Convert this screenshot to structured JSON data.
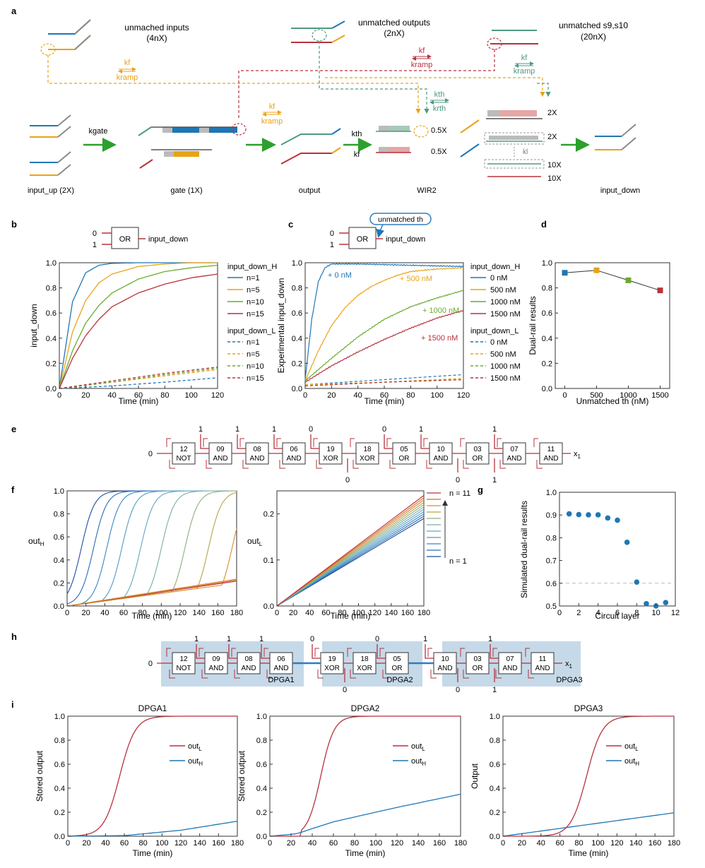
{
  "colors": {
    "blue": "#1f77b4",
    "orange": "#e8a317",
    "green": "#6aab2e",
    "red": "#b8323c",
    "teal": "#4e9a83",
    "gray": "#8a8a8a",
    "arrow_green": "#2ca02c",
    "box_fill": "#c5d9e8",
    "thick_blue": "#2e7ebf"
  },
  "panel_a": {
    "label": "a",
    "unmatched_inputs": "unmached inputs",
    "unmatched_inputs_conc": "(4nX)",
    "unmatched_outputs": "unmatched outputs",
    "unmatched_outputs_conc": "(2nX)",
    "unmatched_s9s10": "unmatched s9,s10",
    "unmatched_s9s10_conc": "(20nX)",
    "kf": "kf",
    "kramp": "kramp",
    "kgate": "kgate",
    "kth": "kth",
    "krth": "krth",
    "kl": "kl",
    "c_2x": "2X",
    "c_05x": "0.5X",
    "c_10x": "10X",
    "input_up": "input_up (2X)",
    "gate": "gate (1X)",
    "output": "output",
    "wir2": "WIR2",
    "input_down": "input_down"
  },
  "panel_b": {
    "label": "b",
    "gate_label": "OR",
    "in0": "0",
    "in1": "1",
    "out_label": "input_down",
    "ylabel": "input_down",
    "xlabel": "Time (min)",
    "legend_h_title": "input_down_H",
    "legend_l_title": "input_down_L",
    "legend_items": [
      "n=1",
      "n=5",
      "n=10",
      "n=15"
    ],
    "xticks": [
      "0",
      "20",
      "40",
      "60",
      "80",
      "100",
      "120"
    ],
    "yticks": [
      "0.0",
      "0.2",
      "0.4",
      "0.6",
      "0.8",
      "1.0"
    ]
  },
  "panel_c": {
    "label": "c",
    "gate_label": "OR",
    "in0": "0",
    "in1": "1",
    "out_label": "input_down",
    "callout": "unmatched th",
    "ylabel": "Experimental input_down",
    "xlabel": "Time (min)",
    "legend_h_title": "input_down_H",
    "legend_l_title": "input_down_L",
    "legend_items": [
      "0 nM",
      "500 nM",
      "1000 nM",
      "1500 nM"
    ],
    "annotations": [
      "+ 0 nM",
      "+ 500 nM",
      "+ 1000 nM",
      "+ 1500 nM"
    ],
    "xticks": [
      "0",
      "20",
      "40",
      "60",
      "80",
      "100",
      "120"
    ],
    "yticks": [
      "0.0",
      "0.2",
      "0.4",
      "0.6",
      "0.8",
      "1.0"
    ]
  },
  "panel_d": {
    "label": "d",
    "ylabel": "Dual-rail results",
    "xlabel": "Unmatched th (nM)",
    "xticks": [
      "0",
      "500",
      "1000",
      "1500"
    ],
    "yticks": [
      "0.0",
      "0.2",
      "0.4",
      "0.6",
      "0.8",
      "1.0"
    ]
  },
  "panel_e": {
    "label": "e",
    "in_left": "0",
    "gates": [
      {
        "num": "12",
        "type": "NOT"
      },
      {
        "num": "09",
        "type": "AND"
      },
      {
        "num": "08",
        "type": "AND"
      },
      {
        "num": "06",
        "type": "AND"
      },
      {
        "num": "19",
        "type": "XOR"
      },
      {
        "num": "18",
        "type": "XOR"
      },
      {
        "num": "05",
        "type": "OR"
      },
      {
        "num": "10",
        "type": "AND"
      },
      {
        "num": "03",
        "type": "OR"
      },
      {
        "num": "07",
        "type": "AND"
      },
      {
        "num": "11",
        "type": "AND"
      }
    ],
    "top_inputs": [
      "1",
      "1",
      "1",
      "0",
      "0",
      "1",
      "1"
    ],
    "bottom_inputs": [
      "0",
      "0",
      "1"
    ],
    "out_label": "x",
    "out_sub": "1"
  },
  "panel_f": {
    "label": "f",
    "left_ylabel": "out",
    "left_ysub": "H",
    "right_ylabel": "out",
    "right_ysub": "L",
    "xlabel": "Time (min)",
    "xticks": [
      "0",
      "20",
      "40",
      "60",
      "80",
      "100",
      "120",
      "140",
      "160",
      "180"
    ],
    "left_yticks": [
      "0.0",
      "0.2",
      "0.4",
      "0.6",
      "0.8",
      "1.0"
    ],
    "right_yticks": [
      "0.0",
      "0.1",
      "0.2"
    ],
    "legend_top": "n = 11",
    "legend_bottom": "n = 1"
  },
  "panel_g": {
    "label": "g",
    "ylabel": "Simulated dual-rail results",
    "xlabel": "Circuit layer",
    "xticks": [
      "0",
      "2",
      "4",
      "6",
      "8",
      "10",
      "12"
    ],
    "yticks": [
      "0.5",
      "0.6",
      "0.7",
      "0.8",
      "0.9",
      "1.0"
    ]
  },
  "panel_h": {
    "label": "h",
    "in_left": "0",
    "group_labels": [
      "DPGA1",
      "DPGA2",
      "DPGA3"
    ],
    "top_inputs": [
      "1",
      "1",
      "1",
      "0",
      "0",
      "1",
      "1"
    ],
    "bottom_inputs": [
      "0",
      "0",
      "1"
    ],
    "out_label": "x",
    "out_sub": "1"
  },
  "panel_i": {
    "label": "i",
    "titles": [
      "DPGA1",
      "DPGA2",
      "DPGA3"
    ],
    "ylabels": [
      "Stored output",
      "Stored output",
      "Output"
    ],
    "xlabel": "Time (min)",
    "legend_l": "out",
    "legend_l_sub": "L",
    "legend_h": "out",
    "legend_h_sub": "H",
    "xticks": [
      "0",
      "20",
      "40",
      "60",
      "80",
      "100",
      "120",
      "140",
      "160",
      "180"
    ],
    "yticks": [
      "0.0",
      "0.2",
      "0.4",
      "0.6",
      "0.8",
      "1.0"
    ]
  },
  "chart_data": [
    {
      "panel": "b",
      "type": "line",
      "xlabel": "Time (min)",
      "ylabel": "input_down",
      "xlim": [
        0,
        120
      ],
      "ylim": [
        0,
        1
      ],
      "series": [
        {
          "name": "n=1",
          "rail": "H",
          "x": [
            0,
            10,
            20,
            30,
            40,
            60,
            80,
            100,
            120
          ],
          "values": [
            0,
            0.69,
            0.92,
            0.98,
            0.995,
            1,
            1,
            1,
            1
          ]
        },
        {
          "name": "n=5",
          "rail": "H",
          "x": [
            0,
            10,
            20,
            30,
            40,
            60,
            80,
            100,
            120
          ],
          "values": [
            0,
            0.45,
            0.7,
            0.84,
            0.91,
            0.97,
            0.99,
            1,
            1
          ]
        },
        {
          "name": "n=10",
          "rail": "H",
          "x": [
            0,
            10,
            20,
            30,
            40,
            60,
            80,
            100,
            120
          ],
          "values": [
            0,
            0.3,
            0.52,
            0.66,
            0.76,
            0.87,
            0.93,
            0.96,
            0.98
          ]
        },
        {
          "name": "n=15",
          "rail": "H",
          "x": [
            0,
            10,
            20,
            30,
            40,
            60,
            80,
            100,
            120
          ],
          "values": [
            0,
            0.24,
            0.42,
            0.55,
            0.65,
            0.76,
            0.83,
            0.88,
            0.91
          ]
        },
        {
          "name": "n=1",
          "rail": "L",
          "x": [
            0,
            40,
            80,
            120
          ],
          "values": [
            0,
            0.02,
            0.05,
            0.085
          ]
        },
        {
          "name": "n=5",
          "rail": "L",
          "x": [
            0,
            40,
            80,
            120
          ],
          "values": [
            0,
            0.05,
            0.1,
            0.15
          ]
        },
        {
          "name": "n=10",
          "rail": "L",
          "x": [
            0,
            40,
            80,
            120
          ],
          "values": [
            0,
            0.05,
            0.11,
            0.16
          ]
        },
        {
          "name": "n=15",
          "rail": "L",
          "x": [
            0,
            40,
            80,
            120
          ],
          "values": [
            0,
            0.06,
            0.12,
            0.17
          ]
        }
      ]
    },
    {
      "panel": "c",
      "type": "line",
      "xlabel": "Time (min)",
      "ylabel": "Experimental input_down",
      "xlim": [
        0,
        120
      ],
      "ylim": [
        0,
        1
      ],
      "series": [
        {
          "name": "0 nM",
          "rail": "H",
          "x": [
            0,
            5,
            10,
            15,
            20,
            40,
            60,
            80,
            100,
            120
          ],
          "values": [
            0.07,
            0.55,
            0.85,
            0.96,
            0.99,
            0.99,
            0.985,
            0.98,
            0.975,
            0.97
          ]
        },
        {
          "name": "500 nM",
          "rail": "H",
          "x": [
            0,
            10,
            20,
            30,
            40,
            50,
            60,
            70,
            80,
            100,
            120
          ],
          "values": [
            0.06,
            0.3,
            0.5,
            0.64,
            0.74,
            0.81,
            0.86,
            0.9,
            0.93,
            0.95,
            0.96
          ]
        },
        {
          "name": "1000 nM",
          "rail": "H",
          "x": [
            0,
            20,
            40,
            60,
            80,
            100,
            120
          ],
          "values": [
            0.06,
            0.24,
            0.41,
            0.55,
            0.65,
            0.72,
            0.78
          ]
        },
        {
          "name": "1500 nM",
          "rail": "H",
          "x": [
            0,
            20,
            40,
            60,
            80,
            100,
            120
          ],
          "values": [
            0.05,
            0.18,
            0.29,
            0.39,
            0.48,
            0.56,
            0.62
          ]
        },
        {
          "name": "0 nM",
          "rail": "L",
          "x": [
            0,
            60,
            120
          ],
          "values": [
            0.03,
            0.07,
            0.11
          ]
        },
        {
          "name": "500 nM",
          "rail": "L",
          "x": [
            0,
            60,
            120
          ],
          "values": [
            0.03,
            0.05,
            0.08
          ]
        },
        {
          "name": "1000 nM",
          "rail": "L",
          "x": [
            0,
            60,
            120
          ],
          "values": [
            0.02,
            0.05,
            0.07
          ]
        },
        {
          "name": "1500 nM",
          "rail": "L",
          "x": [
            0,
            60,
            120
          ],
          "values": [
            0.02,
            0.05,
            0.07
          ]
        }
      ]
    },
    {
      "panel": "d",
      "type": "scatter",
      "xlabel": "Unmatched th (nM)",
      "ylabel": "Dual-rail results",
      "xlim": [
        -150,
        1650
      ],
      "ylim": [
        0,
        1
      ],
      "x": [
        0,
        500,
        1000,
        1500
      ],
      "values": [
        0.92,
        0.94,
        0.86,
        0.78
      ]
    },
    {
      "panel": "f-left",
      "type": "line",
      "xlabel": "Time (min)",
      "ylabel": "outH",
      "xlim": [
        0,
        180
      ],
      "ylim": [
        0,
        1
      ],
      "midpoints": [
        15,
        28,
        42,
        58,
        78,
        100,
        125,
        150,
        175
      ]
    },
    {
      "panel": "f-right",
      "type": "line",
      "xlabel": "Time (min)",
      "ylabel": "outL",
      "xlim": [
        0,
        180
      ],
      "ylim": [
        0,
        0.25
      ],
      "endpoints": [
        0.19,
        0.195,
        0.2,
        0.205,
        0.21,
        0.215,
        0.22,
        0.225,
        0.23,
        0.235,
        0.24
      ]
    },
    {
      "panel": "g",
      "type": "scatter",
      "xlabel": "Circuit layer",
      "ylabel": "Simulated dual-rail results",
      "xlim": [
        0,
        12
      ],
      "ylim": [
        0.5,
        1.0
      ],
      "reference_line": 0.6,
      "x": [
        1,
        2,
        3,
        4,
        5,
        6,
        7,
        8,
        9,
        10,
        11
      ],
      "values": [
        0.905,
        0.902,
        0.901,
        0.901,
        0.887,
        0.877,
        0.78,
        0.605,
        0.51,
        0.5,
        0.515
      ]
    },
    {
      "panel": "i-DPGA1",
      "type": "line",
      "xlabel": "Time (min)",
      "ylabel": "Stored output",
      "xlim": [
        0,
        180
      ],
      "ylim": [
        0,
        1
      ],
      "series": [
        {
          "name": "outL",
          "midpoint": 55,
          "steepness": 0.12
        },
        {
          "name": "outH",
          "x": [
            0,
            60,
            120,
            180
          ],
          "values": [
            0,
            0.005,
            0.05,
            0.125
          ]
        }
      ]
    },
    {
      "panel": "i-DPGA2",
      "type": "line",
      "xlabel": "Time (min)",
      "ylabel": "Stored output",
      "xlim": [
        0,
        180
      ],
      "ylim": [
        0,
        1
      ],
      "series": [
        {
          "name": "outL",
          "midpoint": 48,
          "steepness": 0.16,
          "start": 30
        },
        {
          "name": "outH",
          "x": [
            0,
            25,
            60,
            120,
            180
          ],
          "values": [
            0,
            0.02,
            0.12,
            0.24,
            0.35
          ]
        }
      ]
    },
    {
      "panel": "i-DPGA3",
      "type": "line",
      "xlabel": "Time (min)",
      "ylabel": "Output",
      "xlim": [
        0,
        180
      ],
      "ylim": [
        0,
        1
      ],
      "series": [
        {
          "name": "outL",
          "midpoint": 88,
          "steepness": 0.12
        },
        {
          "name": "outH",
          "x": [
            0,
            60,
            120,
            180
          ],
          "values": [
            0,
            0.065,
            0.13,
            0.195
          ]
        }
      ]
    }
  ]
}
